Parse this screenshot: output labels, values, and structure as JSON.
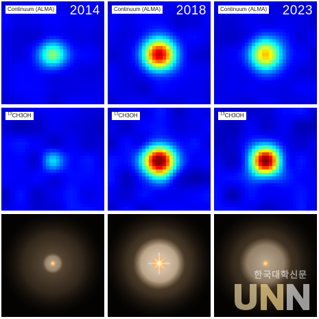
{
  "panels": {
    "row1": {
      "label": "Continuum (ALMA)",
      "years": [
        "2014",
        "2018",
        "2023"
      ]
    },
    "row2": {
      "label_sup": "13",
      "label_rest": "CH3OH"
    }
  },
  "watermark": {
    "korean_text": "한국대학신문",
    "logo_text": "UNN"
  },
  "colors": {
    "map_background": "#0a1ab8",
    "map_peak": "#a80000",
    "optical_background": "#040302",
    "optical_halo": "#f0d9b8"
  }
}
